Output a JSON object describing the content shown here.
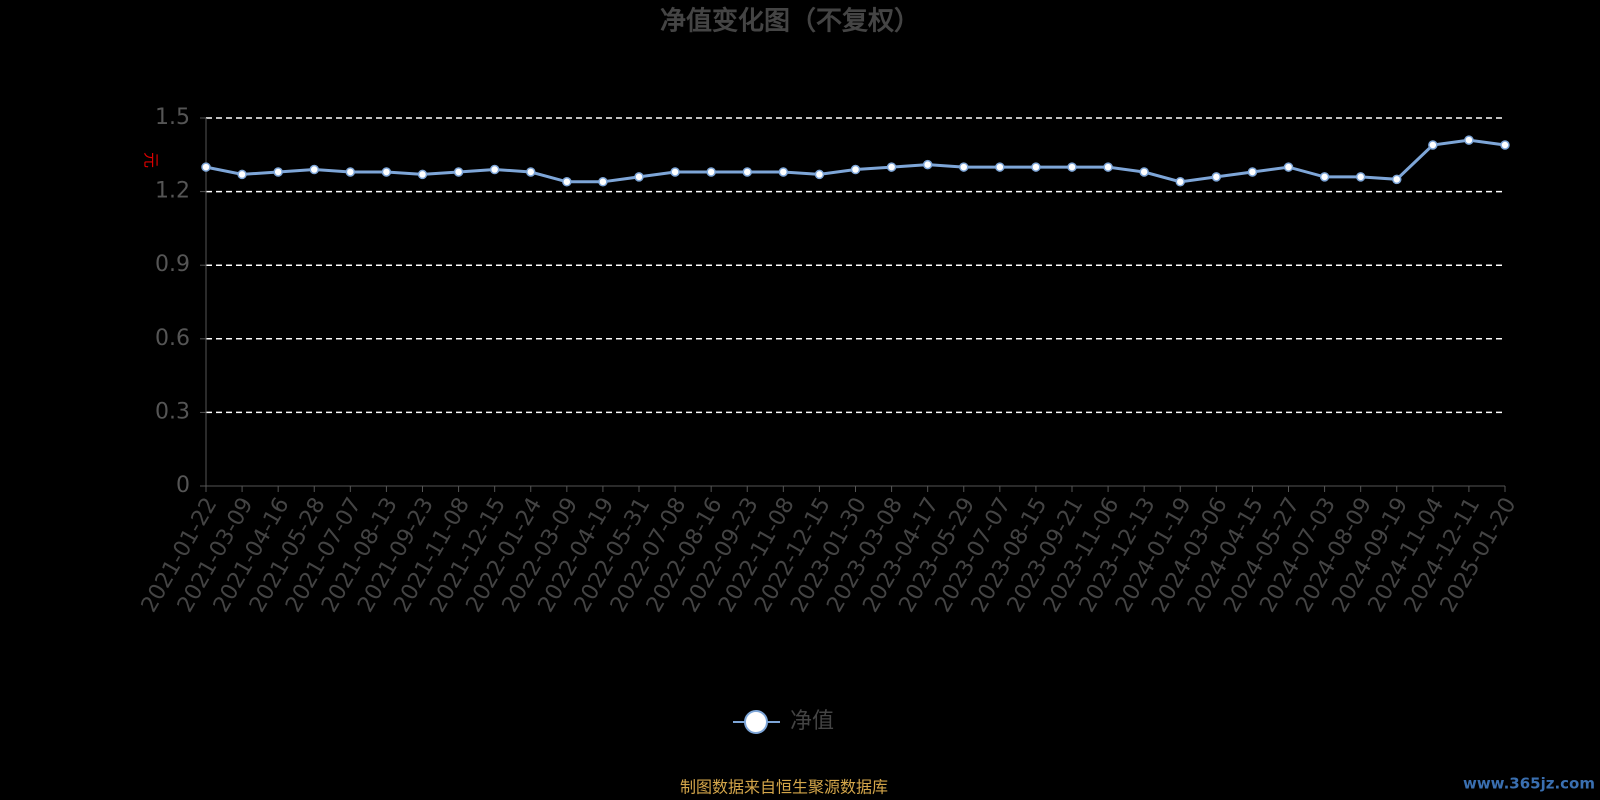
{
  "chart_data": {
    "type": "line",
    "title": "净值变化图（不复权）",
    "y_label": "元",
    "x": [
      "2021-01-22",
      "2021-03-09",
      "2021-04-16",
      "2021-05-28",
      "2021-07-07",
      "2021-08-13",
      "2021-09-23",
      "2021-11-08",
      "2021-12-15",
      "2022-01-24",
      "2022-03-09",
      "2022-04-19",
      "2022-05-31",
      "2022-07-08",
      "2022-08-16",
      "2022-09-23",
      "2022-11-08",
      "2022-12-15",
      "2023-01-30",
      "2023-03-08",
      "2023-04-17",
      "2023-05-29",
      "2023-07-07",
      "2023-08-15",
      "2023-09-21",
      "2023-11-06",
      "2023-12-13",
      "2024-01-19",
      "2024-03-06",
      "2024-04-15",
      "2024-05-27",
      "2024-07-03",
      "2024-08-09",
      "2024-09-19",
      "2024-11-04",
      "2024-12-11",
      "2025-01-20"
    ],
    "series": [
      {
        "name": "净值",
        "color": "#7ea6d8",
        "values": [
          1.3,
          1.27,
          1.28,
          1.29,
          1.28,
          1.28,
          1.27,
          1.28,
          1.29,
          1.28,
          1.24,
          1.24,
          1.26,
          1.28,
          1.28,
          1.28,
          1.28,
          1.27,
          1.29,
          1.3,
          1.31,
          1.3,
          1.3,
          1.3,
          1.3,
          1.3,
          1.28,
          1.24,
          1.26,
          1.28,
          1.3,
          1.26,
          1.26,
          1.25,
          1.39,
          1.41,
          1.39
        ]
      }
    ],
    "ylim": [
      0,
      1.5
    ],
    "yticks": [
      0,
      0.3,
      0.6,
      0.9,
      1.2,
      1.5
    ],
    "grid": true,
    "source": "制图数据来自恒生聚源数据库",
    "watermark": "www.365jz.com"
  }
}
